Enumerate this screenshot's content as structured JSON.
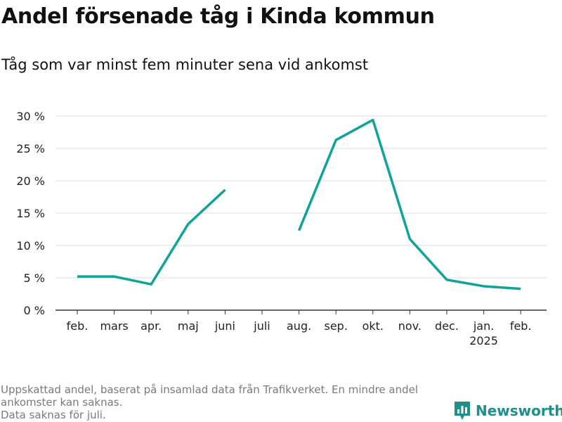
{
  "header": {
    "title": "Andel försenade tåg i Kinda kommun",
    "subtitle": "Tåg som var minst fem minuter sena vid ankomst"
  },
  "chart_data": {
    "type": "line",
    "categories": [
      "feb.",
      "mars",
      "apr.",
      "maj",
      "juni",
      "juli",
      "aug.",
      "sep.",
      "okt.",
      "nov.",
      "dec.",
      "jan.",
      "feb."
    ],
    "category_sublabels": [
      "",
      "",
      "",
      "",
      "",
      "",
      "",
      "",
      "",
      "",
      "",
      "2025",
      ""
    ],
    "series": [
      {
        "values": [
          5.2,
          5.2,
          4.0,
          13.3,
          18.6,
          null,
          12.3,
          26.3,
          29.4,
          11.0,
          4.7,
          3.7,
          3.3
        ]
      }
    ],
    "ylim": [
      0,
      30
    ],
    "yticks": [
      0,
      5,
      10,
      15,
      20,
      25,
      30
    ],
    "ytick_labels": [
      "0 %",
      "5 %",
      "10 %",
      "15 %",
      "20 %",
      "25 %",
      "30 %"
    ],
    "grid": true,
    "line_color": "#0fa39a"
  },
  "footer": {
    "note_line1": "Uppskattad andel, baserat på insamlad data från Trafikverket. En mindre andel ankomster kan saknas.",
    "note_line2": "Data saknas för juli.",
    "brand": "Newsworthy",
    "brand_color": "#1f8f8a"
  }
}
